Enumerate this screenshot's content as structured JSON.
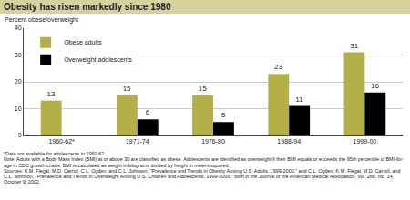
{
  "chart_data": {
    "type": "bar",
    "title": "Obesity has risen markedly since 1980",
    "y_label": "Percent obese/overweight",
    "categories": [
      "1960-62*",
      "1971-74",
      "1976-80",
      "1988-94",
      "1999-00"
    ],
    "series": [
      {
        "name": "Obese adults",
        "color": "#b3b04a",
        "values": [
          13,
          15,
          15,
          23,
          31
        ]
      },
      {
        "name": "Overweight adolescents",
        "color": "#000000",
        "values": [
          null,
          6,
          5,
          11,
          16
        ]
      }
    ],
    "ylim": [
      0,
      40
    ],
    "yticks": [
      0,
      10,
      20,
      30,
      40
    ],
    "grid": true,
    "legend": "top-left",
    "data_labels": true,
    "annotations": [
      "*Data not available for adolescents in 1960-62.",
      "Note: Adults with a Body Mass Index (BMI) at or above 30 are classified as obese. Adolescents are identified as overweight if their BMI equals or exceeds the 95th percentile of BMI-for-age in CDC growth charts. BMI is calculated as weight in kilograms divided by height in meters squared.",
      "Sources: K.M. Flegal, M.D. Carroll, C.L. Ogden, and C.L. Johnson, \"Prevalence and Trends in Obesity Among U.S. Adults, 1999-2000,\" and C.L. Ogden, K.M. Flegal, M.D. Carroll, and C.L. Johnson, \"Prevalence and Trends in Overweight Among U.S. Children and Adolescents, 1999-2000,\" both in the Journal of the American Medical Association, Vol. 288, No. 14, October 9, 2002."
    ]
  }
}
